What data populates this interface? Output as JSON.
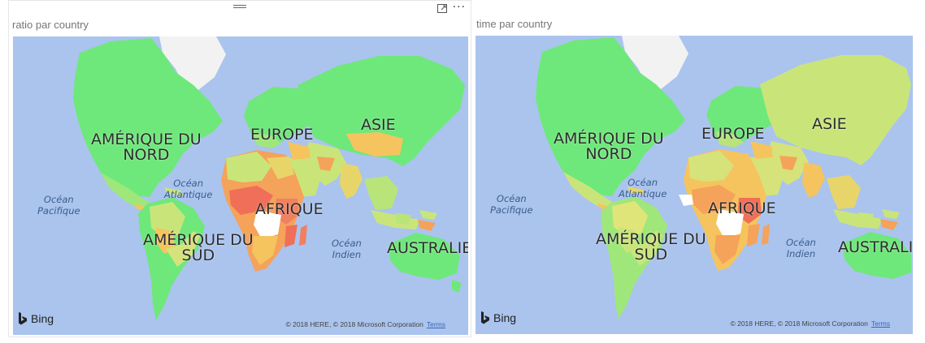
{
  "visuals": [
    {
      "title": "ratio par country",
      "labels": {
        "north_america": "AMÉRIQUE DU\nNORD",
        "europe": "EUROPE",
        "asia": "ASIE",
        "africa": "AFRIQUE",
        "south_america": "AMÉRIQUE DU\nSUD",
        "australia": "AUSTRALIE",
        "atlantic": "Océan\nAtlantique",
        "pacific": "Océan\nPacifique",
        "indian": "Océan\nIndien"
      },
      "bing_label": "Bing",
      "copyright": "© 2018 HERE, © 2018 Microsoft Corporation",
      "terms": "Terms",
      "header_icons": [
        "drag-grip-icon",
        "focus-mode-icon",
        "more-options-icon"
      ],
      "more_label": "···"
    },
    {
      "title": "time par country",
      "labels": {
        "north_america": "AMÉRIQUE DU\nNORD",
        "europe": "EUROPE",
        "asia": "ASIE",
        "africa": "AFRIQUE",
        "south_america": "AMÉRIQUE DU\nSUD",
        "australia": "AUSTRALIE",
        "atlantic": "Océan\nAtlantique",
        "pacific": "Océan\nPacifique",
        "indian": "Océan\nIndien"
      },
      "bing_label": "Bing",
      "copyright": "© 2018 HERE, © 2018 Microsoft Corporation",
      "terms": "Terms"
    }
  ],
  "colors": {
    "ocean": "#aac4ee",
    "land_low": "#6ee87a",
    "land_mid": "#c9e57a",
    "land_high": "#f5a25a",
    "land_peak": "#ef6f58",
    "greenland": "#f2f2f2",
    "no_data": "#ffffff"
  }
}
